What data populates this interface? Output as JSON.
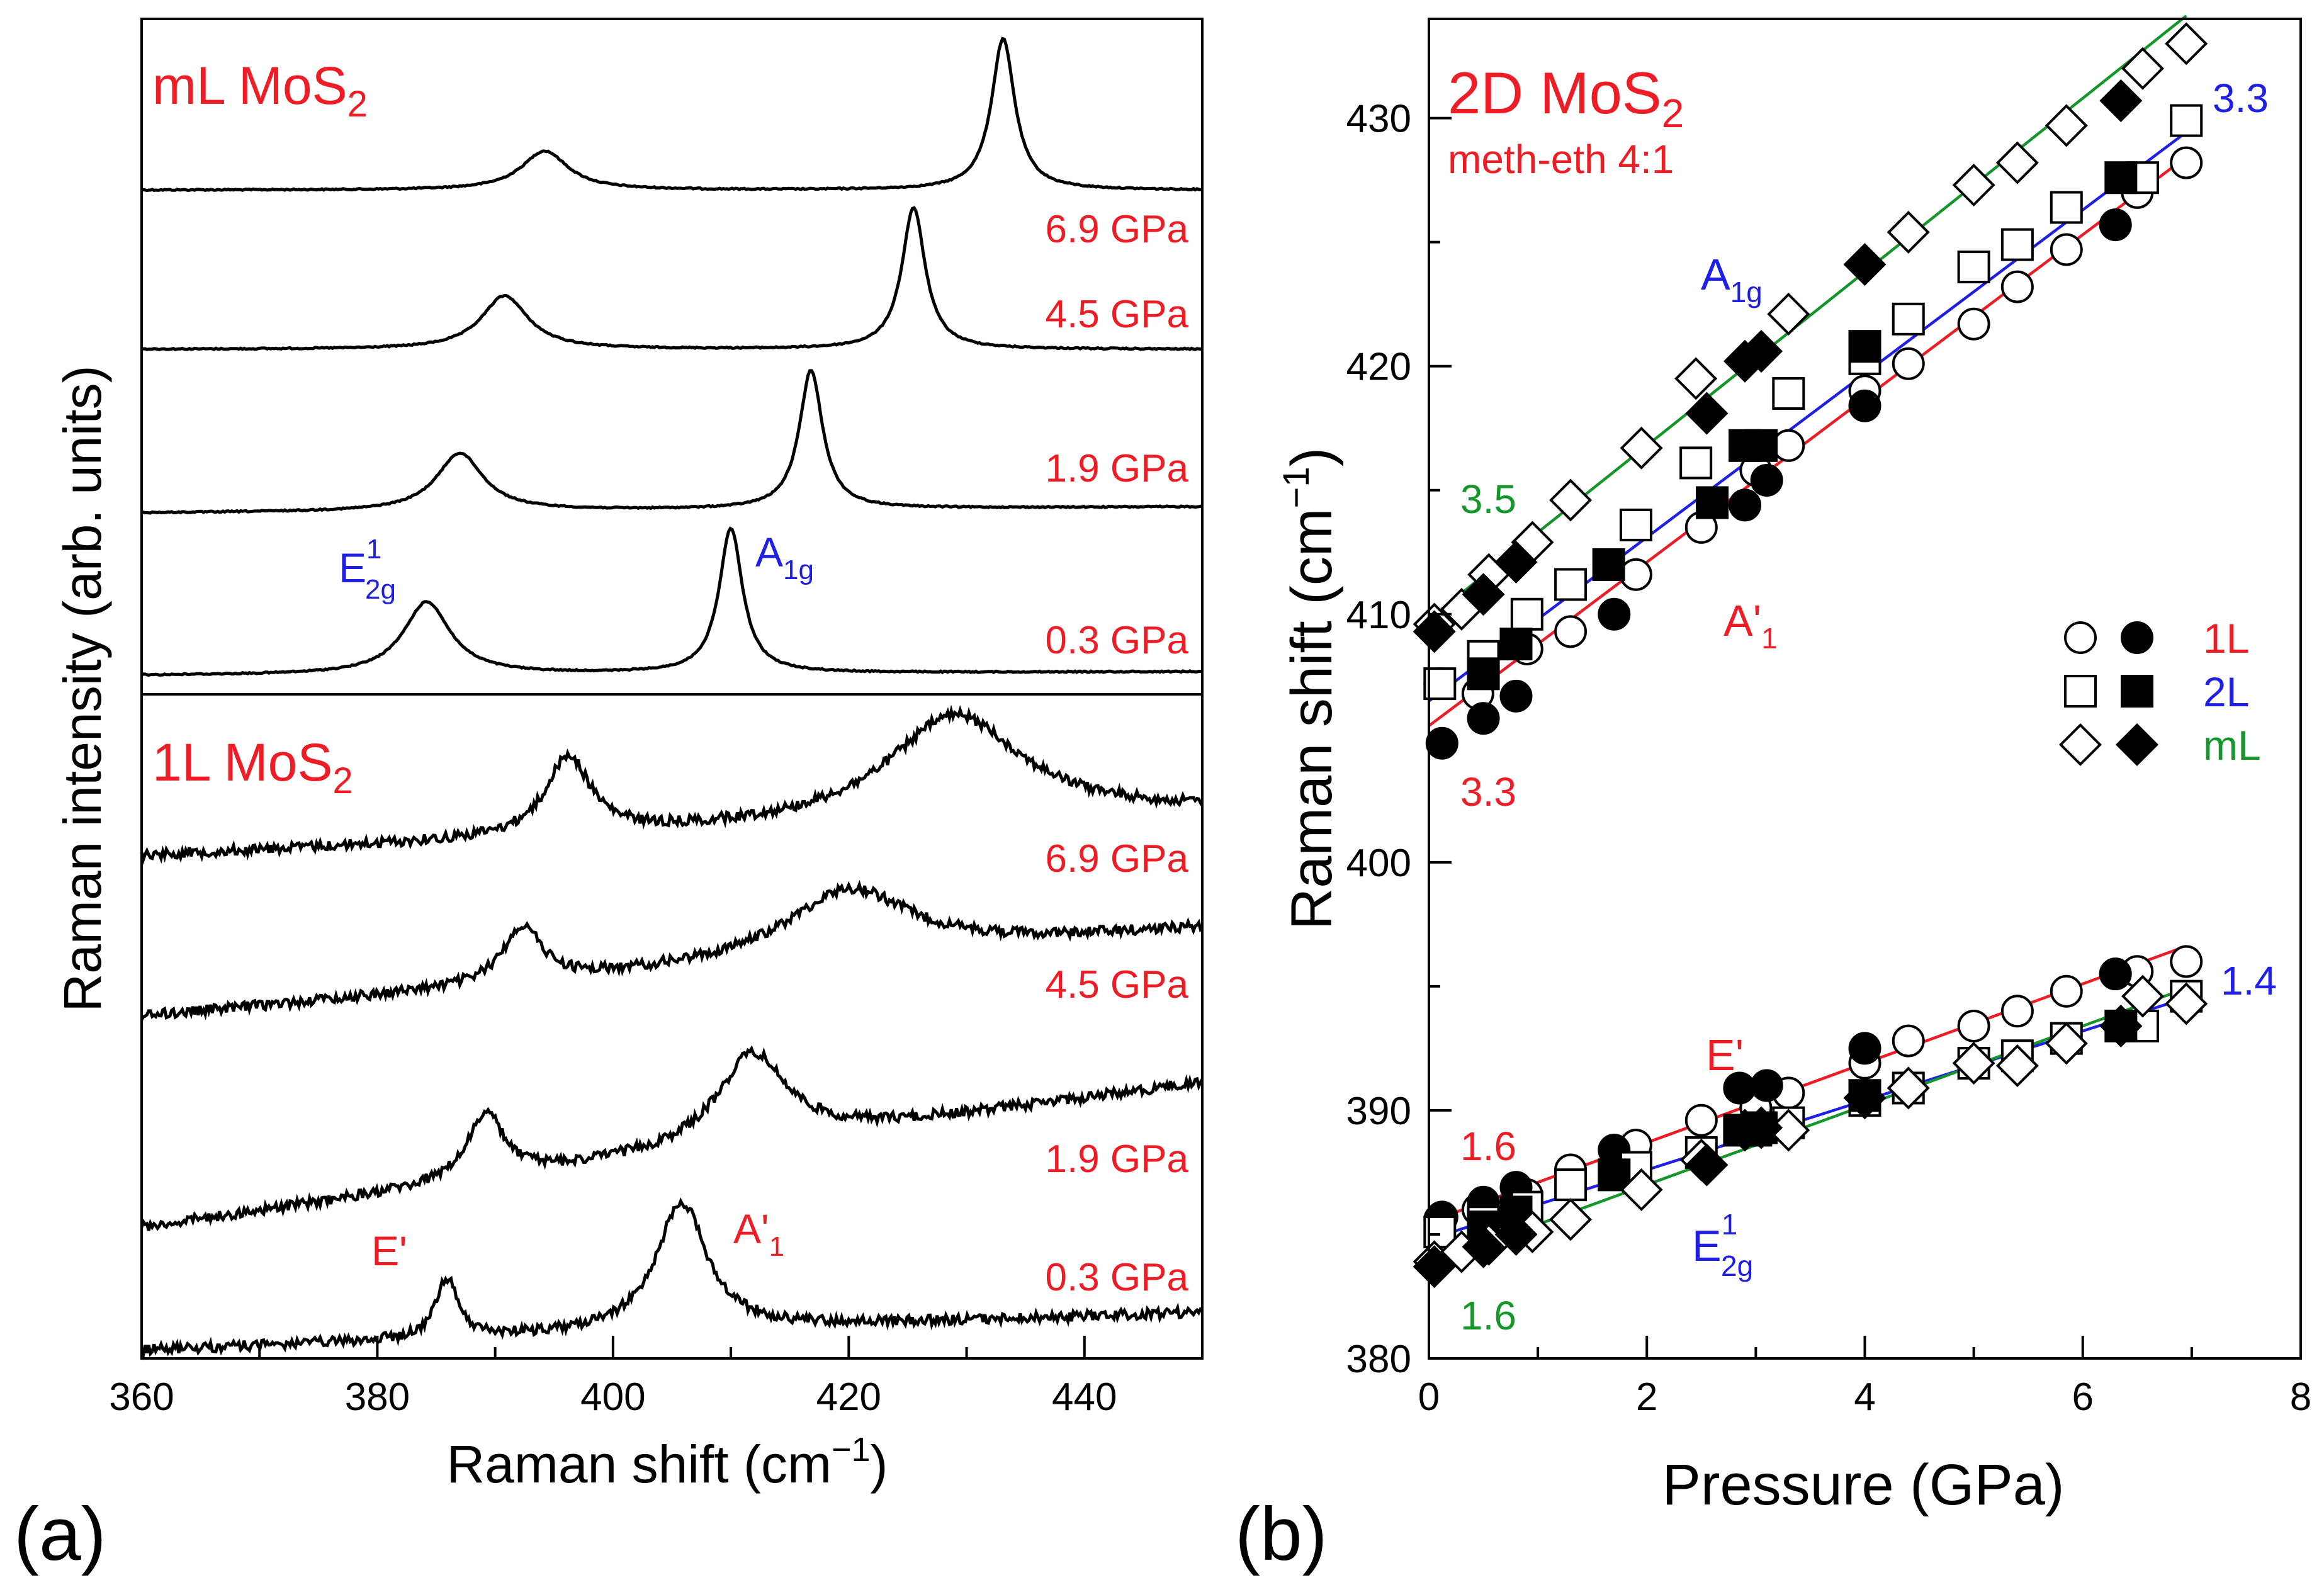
{
  "colors": {
    "red": "#ee1c25",
    "blue": "#1f1fe6",
    "green": "#14962a",
    "black": "#000000"
  },
  "chart_data": [
    {
      "panel": "(a)",
      "type": "line",
      "xlabel_pre": "Raman shift (cm",
      "xlabel_sup": "−1",
      "xlabel_post": ")",
      "ylabel": "Raman intensity (arb. units)",
      "xlim": [
        360,
        450
      ],
      "xticks": [
        360,
        380,
        400,
        420,
        440
      ],
      "grid": false,
      "sections": [
        {
          "title_main": "mL MoS",
          "title_sub": "2",
          "peaks_label": {
            "e2g_main": "E",
            "e2g_sup": "1",
            "e2g_sub": "2g",
            "a1g_main": "A",
            "a1g_sub": "1g"
          },
          "series": [
            {
              "name": "6.9 GPa",
              "E2g_peak_cm": 394.2,
              "A1g_peak_cm": 433.1
            },
            {
              "name": "4.5 GPa",
              "E2g_peak_cm": 390.8,
              "A1g_peak_cm": 425.5
            },
            {
              "name": "1.9 GPa",
              "E2g_peak_cm": 387.0,
              "A1g_peak_cm": 416.8
            },
            {
              "name": "0.3 GPa",
              "E2g_peak_cm": 384.2,
              "A1g_peak_cm": 410.0
            }
          ]
        },
        {
          "title_main": "1L MoS",
          "title_sub": "2",
          "peaks_label": {
            "e_prime": "E'",
            "a1_main": "A'",
            "a1_sub": "1"
          },
          "series": [
            {
              "name": "6.9 GPa",
              "E_prime_peak_cm": 396.2,
              "A1_prime_peak_cm": 429.0
            },
            {
              "name": "4.5 GPa",
              "E_prime_peak_cm": 392.3,
              "A1_prime_peak_cm": 420.0
            },
            {
              "name": "1.9 GPa",
              "E_prime_peak_cm": 389.2,
              "A1_prime_peak_cm": 411.8
            },
            {
              "name": "0.3 GPa",
              "E_prime_peak_cm": 385.9,
              "A1_prime_peak_cm": 405.8
            }
          ]
        }
      ]
    },
    {
      "panel": "(b)",
      "type": "scatter",
      "title_main": "2D MoS",
      "title_sub": "2",
      "subtitle": "meth-eth 4:1",
      "xlabel": "Pressure (GPa)",
      "ylabel_pre": "Raman shift (cm",
      "ylabel_sup": "−1",
      "ylabel_post": ")",
      "xlim": [
        0,
        8
      ],
      "ylim": [
        380,
        434
      ],
      "xticks": [
        0,
        2,
        4,
        6,
        8
      ],
      "yticks": [
        380,
        390,
        400,
        410,
        420,
        430
      ],
      "grid": false,
      "legend": {
        "position": "right",
        "entries": [
          {
            "label": "1L",
            "marker": "circle",
            "color": "#ee1c25"
          },
          {
            "label": "2L",
            "marker": "square",
            "color": "#1f1fe6"
          },
          {
            "label": "mL",
            "marker": "diamond",
            "color": "#14962a"
          }
        ]
      },
      "mode_labels": {
        "a1g_main": "A",
        "a1g_sub": "1g",
        "a1p_main": "A'",
        "a1p_sub": "1",
        "ep": "E'",
        "e2g_main": "E",
        "e2g_sup": "1",
        "e2g_sub": "2g"
      },
      "fits": [
        {
          "name": "A1g mL",
          "color": "green",
          "intercept": 409.8,
          "slope": 3.5,
          "x_end": 6.95,
          "slope_label": "3.5"
        },
        {
          "name": "A1g 2L",
          "color": "blue",
          "intercept": 406.5,
          "slope": 3.3,
          "x_end": 6.95,
          "slope_label": "3.3"
        },
        {
          "name": "A'1 1L",
          "color": "red",
          "intercept": 405.5,
          "slope": 3.3,
          "x_end": 6.95,
          "slope_label": "3.3"
        },
        {
          "name": "E' 1L",
          "color": "red",
          "intercept": 385.5,
          "slope": 1.6,
          "x_end": 6.95,
          "slope_label": "1.6"
        },
        {
          "name": "E2g 2L",
          "color": "blue",
          "intercept": 384.8,
          "slope": 1.4,
          "x_end": 6.95,
          "slope_label": "1.4"
        },
        {
          "name": "E2g mL",
          "color": "green",
          "intercept": 383.8,
          "slope": 1.6,
          "x_end": 6.95,
          "slope_label": "1.6"
        }
      ],
      "series": [
        {
          "name": "1L open",
          "marker": "circle",
          "filled": false,
          "A": [
            [
              0.1,
              407.2
            ],
            [
              0.45,
              406.8
            ],
            [
              0.9,
              408.6
            ],
            [
              1.3,
              409.3
            ],
            [
              1.9,
              411.6
            ],
            [
              2.5,
              413.5
            ],
            [
              3.0,
              415.8
            ],
            [
              3.3,
              416.8
            ],
            [
              4.0,
              419.0
            ],
            [
              4.4,
              420.1
            ],
            [
              5.0,
              421.7
            ],
            [
              5.4,
              423.2
            ],
            [
              5.85,
              424.7
            ],
            [
              6.5,
              427.0
            ],
            [
              6.95,
              428.2
            ]
          ],
          "E": [
            [
              0.1,
              385.6
            ],
            [
              0.45,
              386.0
            ],
            [
              0.9,
              386.6
            ],
            [
              1.3,
              387.6
            ],
            [
              1.9,
              388.6
            ],
            [
              2.5,
              389.6
            ],
            [
              3.0,
              390.1
            ],
            [
              3.3,
              390.7
            ],
            [
              4.0,
              391.9
            ],
            [
              4.4,
              392.8
            ],
            [
              5.0,
              393.4
            ],
            [
              5.4,
              394.0
            ],
            [
              5.85,
              394.8
            ],
            [
              6.5,
              395.6
            ],
            [
              6.95,
              396.0
            ]
          ]
        },
        {
          "name": "1L filled",
          "marker": "circle",
          "filled": true,
          "A": [
            [
              0.12,
              404.8
            ],
            [
              0.5,
              405.8
            ],
            [
              0.8,
              406.7
            ],
            [
              1.7,
              410.0
            ],
            [
              2.9,
              414.4
            ],
            [
              3.1,
              415.4
            ],
            [
              4.0,
              418.4
            ],
            [
              6.3,
              425.7
            ]
          ],
          "E": [
            [
              0.12,
              385.7
            ],
            [
              0.5,
              386.3
            ],
            [
              0.8,
              386.9
            ],
            [
              1.7,
              388.4
            ],
            [
              2.85,
              390.9
            ],
            [
              3.1,
              391.0
            ],
            [
              4.0,
              392.5
            ],
            [
              6.3,
              395.5
            ]
          ]
        },
        {
          "name": "2L open",
          "marker": "square",
          "filled": false,
          "A": [
            [
              0.1,
              407.2
            ],
            [
              0.5,
              408.3
            ],
            [
              0.9,
              410.0
            ],
            [
              1.3,
              411.2
            ],
            [
              1.9,
              413.6
            ],
            [
              2.45,
              416.1
            ],
            [
              3.3,
              418.9
            ],
            [
              4.0,
              420.3
            ],
            [
              4.4,
              421.9
            ],
            [
              5.0,
              424.0
            ],
            [
              5.4,
              424.9
            ],
            [
              5.85,
              426.4
            ],
            [
              6.55,
              427.6
            ],
            [
              6.95,
              429.9
            ]
          ],
          "E": [
            [
              0.1,
              385.1
            ],
            [
              0.5,
              385.5
            ],
            [
              0.9,
              386.1
            ],
            [
              1.3,
              387.0
            ],
            [
              1.9,
              387.7
            ],
            [
              2.5,
              388.3
            ],
            [
              3.0,
              389.2
            ],
            [
              3.3,
              389.5
            ],
            [
              4.0,
              390.4
            ],
            [
              4.4,
              390.9
            ],
            [
              5.0,
              391.9
            ],
            [
              5.4,
              392.2
            ],
            [
              5.85,
              392.9
            ],
            [
              6.55,
              393.4
            ],
            [
              6.95,
              394.6
            ]
          ]
        },
        {
          "name": "2L filled",
          "marker": "square",
          "filled": true,
          "A": [
            [
              0.5,
              407.6
            ],
            [
              0.8,
              408.8
            ],
            [
              1.65,
              412.0
            ],
            [
              2.6,
              414.5
            ],
            [
              2.9,
              416.8
            ],
            [
              3.05,
              416.8
            ],
            [
              4.0,
              420.8
            ],
            [
              6.35,
              427.6
            ]
          ],
          "E": [
            [
              0.5,
              385.3
            ],
            [
              0.8,
              385.9
            ],
            [
              1.7,
              387.4
            ],
            [
              2.85,
              389.2
            ],
            [
              3.05,
              389.3
            ],
            [
              4.0,
              390.6
            ],
            [
              6.35,
              393.4
            ]
          ]
        },
        {
          "name": "mL open",
          "marker": "diamond",
          "filled": false,
          "A": [
            [
              0.05,
              409.6
            ],
            [
              0.3,
              410.2
            ],
            [
              0.55,
              411.6
            ],
            [
              0.95,
              412.9
            ],
            [
              1.3,
              414.6
            ],
            [
              1.95,
              416.7
            ],
            [
              2.45,
              419.5
            ],
            [
              3.3,
              422.1
            ],
            [
              4.4,
              425.4
            ],
            [
              5.0,
              427.3
            ],
            [
              5.4,
              428.2
            ],
            [
              5.85,
              429.7
            ],
            [
              6.55,
              432.0
            ],
            [
              6.95,
              433.0
            ]
          ],
          "E": [
            [
              0.05,
              383.9
            ],
            [
              0.3,
              384.3
            ],
            [
              0.55,
              384.6
            ],
            [
              0.95,
              385.1
            ],
            [
              1.3,
              385.6
            ],
            [
              1.95,
              386.8
            ],
            [
              2.5,
              388.0
            ],
            [
              3.3,
              389.2
            ],
            [
              4.4,
              390.9
            ],
            [
              5.0,
              391.9
            ],
            [
              5.4,
              391.8
            ],
            [
              5.85,
              392.7
            ],
            [
              6.55,
              394.6
            ],
            [
              6.95,
              394.3
            ]
          ]
        },
        {
          "name": "mL filled",
          "marker": "diamond",
          "filled": true,
          "A": [
            [
              0.05,
              409.3
            ],
            [
              0.5,
              410.8
            ],
            [
              0.8,
              412.1
            ],
            [
              2.55,
              418.1
            ],
            [
              2.9,
              420.2
            ],
            [
              3.05,
              420.6
            ],
            [
              4.0,
              424.1
            ],
            [
              6.35,
              430.7
            ]
          ],
          "E": [
            [
              0.05,
              383.7
            ],
            [
              0.5,
              384.5
            ],
            [
              0.8,
              385.0
            ],
            [
              2.55,
              387.8
            ],
            [
              2.9,
              389.2
            ],
            [
              3.05,
              389.3
            ],
            [
              4.0,
              390.5
            ],
            [
              6.35,
              393.4
            ]
          ]
        }
      ]
    }
  ]
}
